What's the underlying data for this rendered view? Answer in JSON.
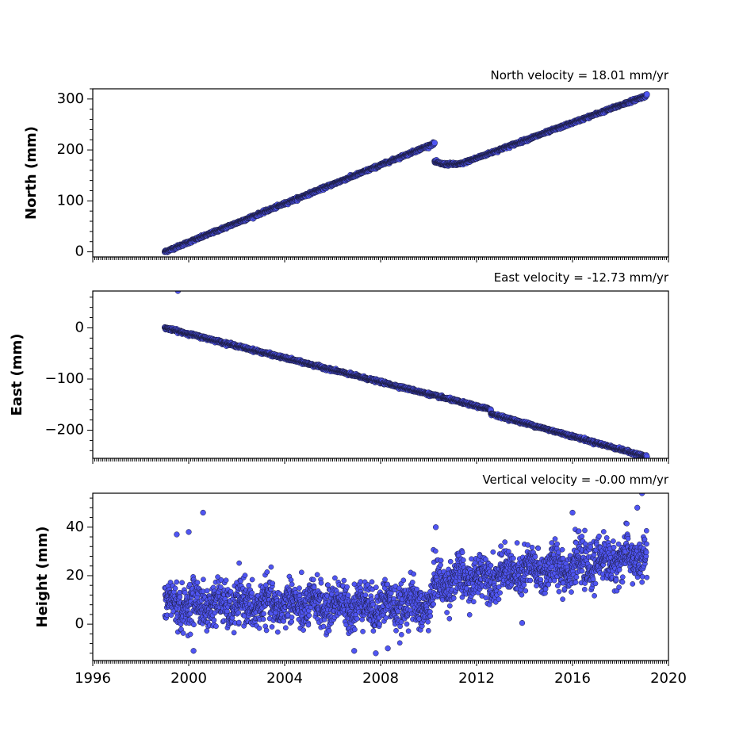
{
  "chart_data": [
    {
      "type": "scatter",
      "title": "North velocity = 18.01 mm/yr",
      "ylabel": "North (mm)",
      "xlim": [
        1996,
        2020
      ],
      "ylim": [
        -10,
        320
      ],
      "yticks": [
        0,
        100,
        200,
        300
      ],
      "ytick_labels": [
        "0",
        "100",
        "200",
        "300"
      ],
      "xticks": [
        1996,
        2000,
        2004,
        2008,
        2012,
        2016,
        2020
      ],
      "segments": [
        {
          "x_start": 1999.0,
          "x_end": 2010.25,
          "y_start": 0,
          "y_end": 213
        },
        {
          "x_start": 2010.25,
          "x_end": 2010.6,
          "y_start": 177,
          "y_end": 172
        },
        {
          "x_start": 2010.6,
          "x_end": 2011.3,
          "y_start": 172,
          "y_end": 172
        },
        {
          "x_start": 2011.3,
          "x_end": 2019.1,
          "y_start": 172,
          "y_end": 307
        }
      ]
    },
    {
      "type": "scatter",
      "title": "East velocity = -12.73 mm/yr",
      "ylabel": "East (mm)",
      "xlim": [
        1996,
        2020
      ],
      "ylim": [
        -255,
        72
      ],
      "yticks": [
        0,
        -100,
        -200
      ],
      "ytick_labels": [
        "0",
        "−100",
        "−200"
      ],
      "xticks": [
        1996,
        2000,
        2004,
        2008,
        2012,
        2016,
        2020
      ],
      "segments": [
        {
          "x_start": 1999.0,
          "x_end": 2012.6,
          "y_start": 0,
          "y_end": -160
        },
        {
          "x_start": 2012.6,
          "x_end": 2019.1,
          "y_start": -168,
          "y_end": -252
        }
      ],
      "outliers": [
        {
          "x": 1999.55,
          "y": 72
        }
      ]
    },
    {
      "type": "scatter",
      "title": "Vertical velocity = -0.00 mm/yr",
      "ylabel": "Height (mm)",
      "xlim": [
        1996,
        2020
      ],
      "ylim": [
        -15,
        54
      ],
      "yticks": [
        0,
        20,
        40
      ],
      "ytick_labels": [
        "0",
        "20",
        "40"
      ],
      "xticks": [
        1996,
        2000,
        2004,
        2008,
        2012,
        2016,
        2020
      ],
      "xtick_labels": [
        "1996",
        "2000",
        "2004",
        "2008",
        "2012",
        "2016",
        "2020"
      ],
      "segments": [
        {
          "x_start": 1999.0,
          "x_end": 2010.2,
          "y_mean": 8,
          "y_spread": 8
        },
        {
          "x_start": 2010.2,
          "x_end": 2019.1,
          "y_start": 17,
          "y_end": 28,
          "y_spread": 8
        }
      ],
      "outliers": [
        {
          "x": 2000.6,
          "y": 46
        },
        {
          "x": 1999.5,
          "y": 37
        },
        {
          "x": 2000.0,
          "y": 38
        },
        {
          "x": 2018.9,
          "y": 54
        },
        {
          "x": 2018.7,
          "y": 48
        },
        {
          "x": 2013.9,
          "y": 0.5
        },
        {
          "x": 2006.9,
          "y": -11
        },
        {
          "x": 2007.8,
          "y": -12
        },
        {
          "x": 2008.3,
          "y": -10
        },
        {
          "x": 2000.2,
          "y": -11
        },
        {
          "x": 2016.0,
          "y": 46
        },
        {
          "x": 2010.3,
          "y": 40
        }
      ]
    }
  ]
}
